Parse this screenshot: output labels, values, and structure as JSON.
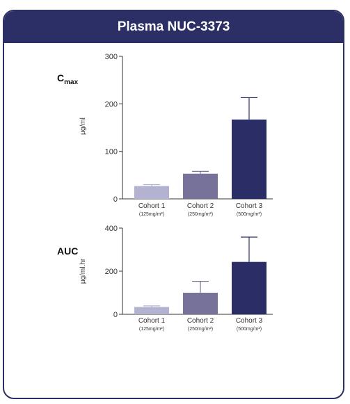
{
  "panel": {
    "title": "Plasma NUC-3373"
  },
  "chart_data": [
    {
      "type": "bar",
      "metric_main": "C",
      "metric_sub": "max",
      "ylabel": "µg/ml",
      "ylim": [
        0,
        300
      ],
      "yticks": [
        0,
        100,
        200,
        300
      ],
      "categories": [
        "Cohort 1",
        "Cohort 2",
        "Cohort 3"
      ],
      "category_subs": [
        "(125mg/m²)",
        "(250mg/m²)",
        "(500mg/m²)"
      ],
      "values": [
        27,
        53,
        167
      ],
      "errors": [
        3,
        5,
        46
      ],
      "colors": [
        "#b3b3d1",
        "#777299",
        "#2b2d66"
      ]
    },
    {
      "type": "bar",
      "metric_main": "AUC",
      "metric_sub": "",
      "ylabel": "µg/ml.hr",
      "ylim": [
        0,
        400
      ],
      "yticks": [
        0,
        200,
        400
      ],
      "categories": [
        "Cohort 1",
        "Cohort 2",
        "Cohort 3"
      ],
      "category_subs": [
        "(125mg/m²)",
        "(250mg/m²)",
        "(500mg/m²)"
      ],
      "values": [
        34,
        100,
        243
      ],
      "errors": [
        5,
        53,
        115
      ],
      "colors": [
        "#b3b3d1",
        "#777299",
        "#2b2d66"
      ]
    }
  ]
}
